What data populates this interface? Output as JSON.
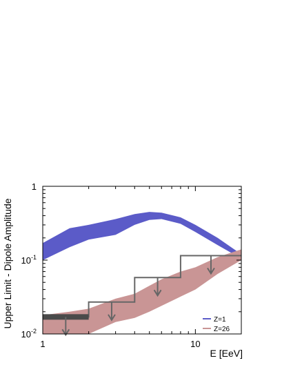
{
  "chart_data": {
    "type": "area",
    "xlabel": "E [EeV]",
    "ylabel": "Upper Limit - Dipole Amplitude",
    "xscale": "log",
    "yscale": "log",
    "xlim": [
      1,
      20
    ],
    "ylim": [
      0.01,
      1
    ],
    "x_tick_labels": [
      {
        "value": 1,
        "label": "1"
      },
      {
        "value": 10,
        "label": "10"
      }
    ],
    "y_tick_labels": [
      {
        "value": 0.01,
        "base": "10",
        "exp": "-2"
      },
      {
        "value": 0.1,
        "base": "10",
        "exp": "-1"
      },
      {
        "value": 1,
        "base": "1",
        "exp": ""
      }
    ],
    "legend_position": "bottom-right",
    "series": [
      {
        "name": "Z=1",
        "kind": "band",
        "color": "#5b5bc8",
        "x": [
          1,
          1.5,
          2,
          3,
          4,
          5,
          6,
          8,
          10,
          14,
          20
        ],
        "upper": [
          0.17,
          0.27,
          0.3,
          0.36,
          0.42,
          0.45,
          0.44,
          0.38,
          0.3,
          0.2,
          0.12
        ],
        "lower": [
          0.1,
          0.15,
          0.19,
          0.22,
          0.3,
          0.35,
          0.36,
          0.31,
          0.24,
          0.16,
          0.105
        ]
      },
      {
        "name": "Z=26",
        "kind": "band",
        "color": "#c99595",
        "x": [
          1,
          1.5,
          2,
          3,
          4,
          5,
          6,
          8,
          10,
          14,
          20
        ],
        "upper": [
          0.018,
          0.02,
          0.022,
          0.03,
          0.035,
          0.045,
          0.055,
          0.07,
          0.08,
          0.11,
          0.14
        ],
        "lower": [
          0.01,
          0.01,
          0.01,
          0.0145,
          0.0165,
          0.02,
          0.024,
          0.032,
          0.04,
          0.065,
          0.1
        ]
      }
    ],
    "upper_limits": {
      "color": "#666666",
      "bins": [
        {
          "x_low": 1,
          "x_high": 2,
          "value": 0.017
        },
        {
          "x_low": 2,
          "x_high": 4,
          "value": 0.027
        },
        {
          "x_low": 4,
          "x_high": 8,
          "value": 0.058
        },
        {
          "x_low": 8,
          "x_high": 20,
          "value": 0.115
        }
      ]
    }
  }
}
